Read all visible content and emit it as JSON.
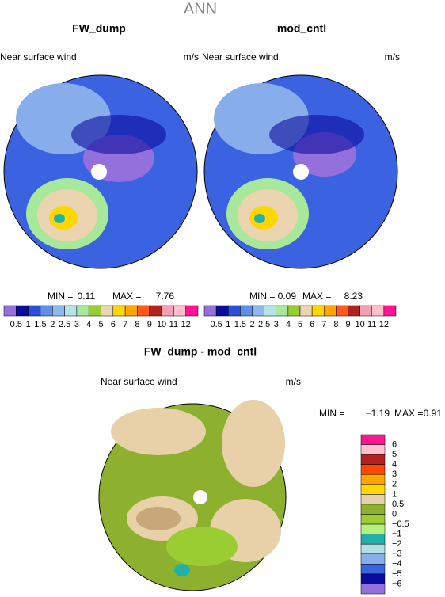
{
  "title": "ANN",
  "panels": [
    {
      "title": "FW_dump",
      "field": "Near surface wind",
      "units": "m/s",
      "min_label": "MIN =",
      "min": "0.11",
      "max_label": "MAX =",
      "max": "7.76"
    },
    {
      "title": "mod_cntl",
      "field": "Near surface wind",
      "units": "m/s",
      "min_label": "MIN =",
      "min": "0.09",
      "max_label": "MAX =",
      "max": "8.23"
    }
  ],
  "colorbar": {
    "colors": [
      "#9370db",
      "#0c0c9c",
      "#2b4fd8",
      "#5f8fe8",
      "#8fb8ef",
      "#b4e4e4",
      "#a8e89a",
      "#9acd32",
      "#ead5b0",
      "#ffd700",
      "#ffa500",
      "#ff5a1e",
      "#b22222",
      "#f4a0b4",
      "#ffc0cb",
      "#ff1493"
    ],
    "labels": [
      "0.5",
      "1",
      "1.5",
      "2",
      "2.5",
      "3",
      "4",
      "5",
      "6",
      "7",
      "8",
      "9",
      "10",
      "11",
      "12"
    ]
  },
  "diff": {
    "title": "FW_dump - mod_cntl",
    "field": "Near surface wind",
    "units": "m/s",
    "min_label": "MIN =",
    "min": "−1.19",
    "max_label": "MAX =",
    "max": "0.91"
  },
  "diff_colorbar": {
    "colors": [
      "#ff1493",
      "#ffc0cb",
      "#b22222",
      "#ff4500",
      "#ffa500",
      "#ffd700",
      "#e8d0a8",
      "#8db02e",
      "#9acd32",
      "#b8f080",
      "#20b2aa",
      "#b0e0e6",
      "#87aeea",
      "#3b62e0",
      "#0c0c9c",
      "#9370db"
    ],
    "labels": [
      "6",
      "5",
      "4",
      "3",
      "2",
      "1",
      "0.5",
      "0",
      "−0.5",
      "−1",
      "−2",
      "−3",
      "−4",
      "−5",
      "−6"
    ]
  }
}
